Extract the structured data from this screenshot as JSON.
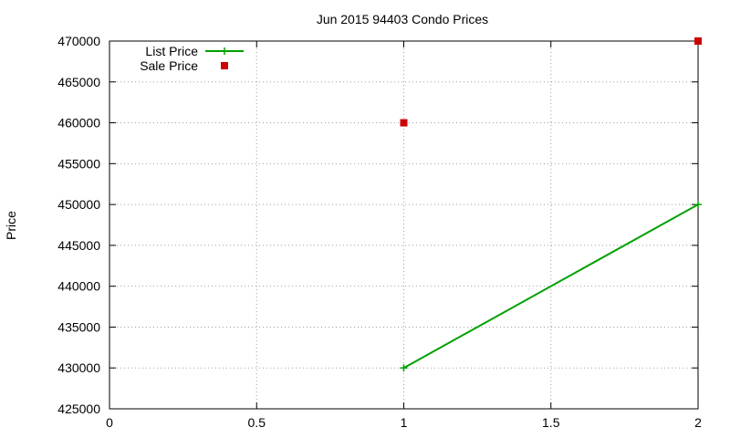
{
  "chart_data": {
    "type": "line",
    "title": "Jun 2015 94403 Condo Prices",
    "xlabel": "",
    "ylabel": "Price",
    "xlim": [
      0,
      2
    ],
    "ylim": [
      425000,
      470000
    ],
    "xticks": [
      0,
      0.5,
      1,
      1.5,
      2
    ],
    "xtick_labels": [
      "0",
      "0.5",
      "1",
      "1.5",
      "2"
    ],
    "yticks": [
      425000,
      430000,
      435000,
      440000,
      445000,
      450000,
      455000,
      460000,
      465000,
      470000
    ],
    "ytick_labels": [
      "425000",
      "430000",
      "435000",
      "440000",
      "445000",
      "450000",
      "455000",
      "460000",
      "465000",
      "470000"
    ],
    "grid": true,
    "legend": "top-left",
    "series": [
      {
        "name": "List Price",
        "style": "line+plus",
        "color": "#00a000",
        "x": [
          1,
          2
        ],
        "y": [
          430000,
          450000
        ]
      },
      {
        "name": "Sale Price",
        "style": "square-marker",
        "color": "#cc0000",
        "x": [
          1,
          2
        ],
        "y": [
          460000,
          470000
        ]
      }
    ]
  }
}
